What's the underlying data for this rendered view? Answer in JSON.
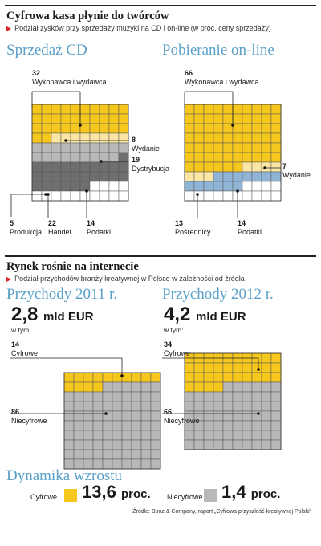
{
  "header": {
    "title": "Cyfrowa kasa płynie do twórców",
    "subtitle": "Podział zysków przy sprzedaży muzyki na CD i on-line (w proc. ceny sprzedaży)"
  },
  "colors": {
    "yellow": "#f6c71c",
    "light_yellow": "#fbe6a3",
    "light_gray": "#b8b8b8",
    "dark_gray": "#6f6f6f",
    "blue": "#8fb4d6",
    "white": "#ffffff",
    "accent": "#5aa0c8",
    "bullet_red": "#d9262b"
  },
  "cd_panel": {
    "title": "Sprzedaż CD",
    "labels": {
      "wyk_num": "32",
      "wyk": "Wykonawca i wydawca",
      "wyd_num": "8",
      "wyd": "Wydanie",
      "dys_num": "19",
      "dys": "Dystrybucja",
      "prod_num": "5",
      "prod": "Produkcja",
      "han_num": "22",
      "han": "Handel",
      "pod_num": "14",
      "pod": "Podatki"
    }
  },
  "online_panel": {
    "title": "Pobieranie on-line",
    "labels": {
      "wyk_num": "66",
      "wyk": "Wykonawca i wydawca",
      "wyd_num": "7",
      "wyd": "Wydanie",
      "pos_num": "13",
      "pos": "Pośrednicy",
      "pod_num": "14",
      "pod": "Podatki"
    }
  },
  "section2": {
    "title": "Rynek rośnie na internecie",
    "subtitle": "Podział przychodów branży kreatywnej w Polsce w zależności od źródła"
  },
  "rev2011": {
    "title": "Przychody 2011 r.",
    "amount": "2,8",
    "unit": "mld EUR",
    "wtym": "w tym:",
    "cyf_num": "14",
    "cyf": "Cyfrowe",
    "nie_num": "86",
    "nie": "Niecyfrowe"
  },
  "rev2012": {
    "title": "Przychody 2012 r.",
    "amount": "4,2",
    "unit": "mld EUR",
    "wtym": "w tym:",
    "cyf_num": "34",
    "cyf": "Cyfrowe",
    "nie_num": "66",
    "nie": "Niecyfrowe"
  },
  "growth": {
    "title": "Dynamika wzrostu",
    "cyf_label": "Cyfrowe",
    "cyf_value": "13,6",
    "cyf_unit": "proc.",
    "nie_label": "Niecyfrowe",
    "nie_value": "1,4",
    "nie_unit": "proc."
  },
  "source": "Źródło: Booz & Company, raport „Cyfrowa przyszłość kreatywnej Polski”",
  "chart_data": [
    {
      "type": "waffle",
      "title": "Sprzedaż CD",
      "categories": [
        "Wykonawca i wydawca",
        "Wydanie",
        "Dystrybucja",
        "Produkcja",
        "Handel",
        "Podatki"
      ],
      "values": [
        32,
        8,
        19,
        5,
        22,
        14
      ],
      "colors": [
        "yellow",
        "light_yellow",
        "light_gray",
        "dark_gray",
        "dark_gray",
        "white"
      ]
    },
    {
      "type": "waffle",
      "title": "Pobieranie on-line",
      "categories": [
        "Wykonawca i wydawca",
        "Wydanie",
        "Pośrednicy",
        "Podatki"
      ],
      "values": [
        66,
        7,
        13,
        14
      ],
      "colors": [
        "yellow",
        "light_yellow",
        "blue",
        "white"
      ]
    },
    {
      "type": "waffle",
      "title": "Przychody 2011 r.",
      "categories": [
        "Cyfrowe",
        "Niecyfrowe"
      ],
      "values": [
        14,
        86
      ],
      "colors": [
        "yellow",
        "light_gray"
      ]
    },
    {
      "type": "waffle",
      "title": "Przychody 2012 r.",
      "categories": [
        "Cyfrowe",
        "Niecyfrowe"
      ],
      "values": [
        34,
        66
      ],
      "colors": [
        "yellow",
        "light_gray"
      ]
    },
    {
      "type": "bar",
      "title": "Dynamika wzrostu",
      "categories": [
        "Cyfrowe",
        "Niecyfrowe"
      ],
      "values": [
        13.6,
        1.4
      ],
      "unit": "proc."
    }
  ]
}
